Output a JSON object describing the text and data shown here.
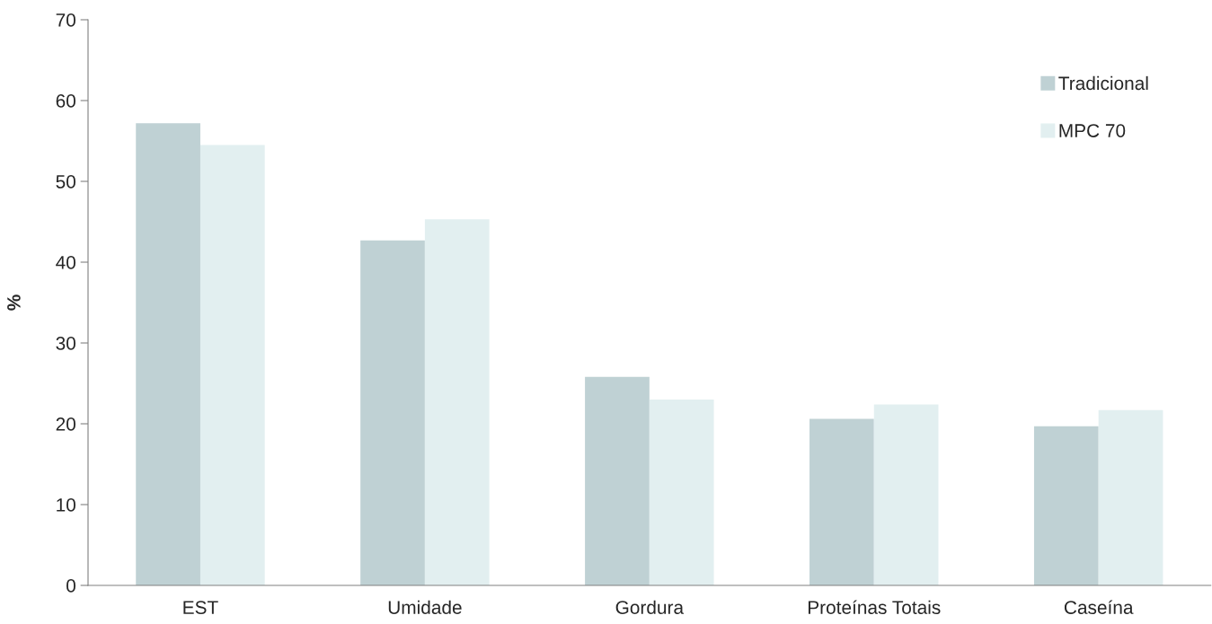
{
  "chart_data": {
    "type": "bar",
    "ylabel": "%",
    "categories": [
      "EST",
      "Umidade",
      "Gordura",
      "Proteínas Totais",
      "Caseína"
    ],
    "series": [
      {
        "name": "Tradicional",
        "color": "#bfd1d4",
        "values": [
          57.2,
          42.7,
          25.8,
          20.6,
          19.7
        ]
      },
      {
        "name": "MPC 70",
        "color": "#e2eff0",
        "values": [
          54.5,
          45.3,
          23.0,
          22.4,
          21.7
        ]
      }
    ],
    "ylim": [
      0,
      70
    ],
    "yticks": [
      0,
      10,
      20,
      30,
      40,
      50,
      60,
      70
    ],
    "grid": false,
    "legend": "top right"
  }
}
